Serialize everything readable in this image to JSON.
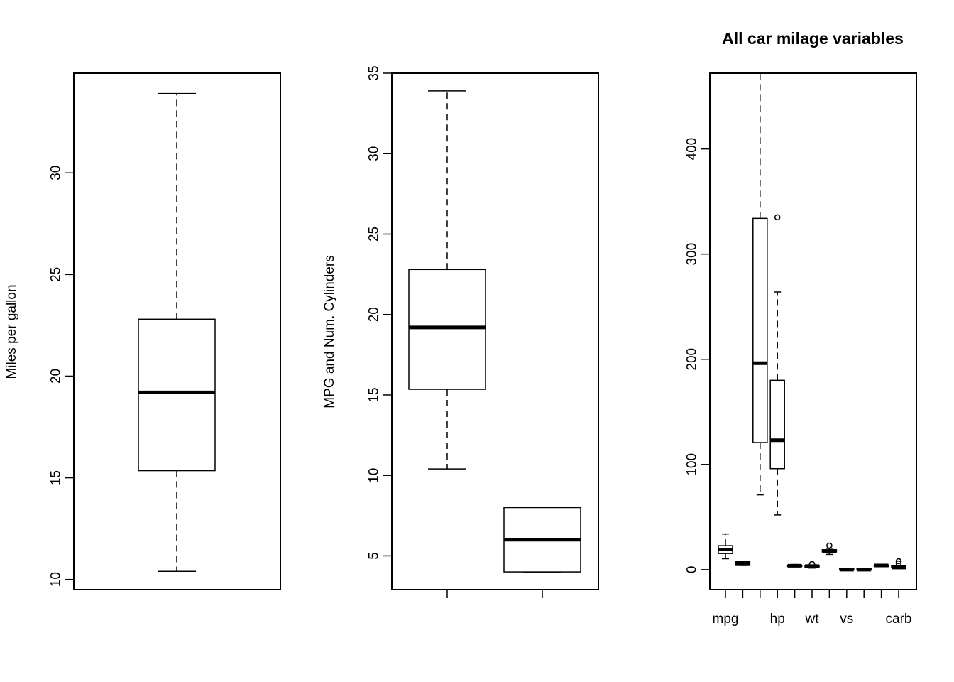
{
  "chart_data": [
    {
      "type": "boxplot",
      "title": "",
      "xlabel": "",
      "ylabel": "Miles per gallon",
      "ylim": [
        9.5,
        34.9
      ],
      "yticks": [
        10,
        15,
        20,
        25,
        30
      ],
      "xtick_labels": [],
      "show_x_axis": false,
      "boxes": [
        {
          "min": 10.4,
          "q1": 15.35,
          "median": 19.2,
          "q3": 22.8,
          "max": 33.9,
          "outliers": []
        }
      ]
    },
    {
      "type": "boxplot",
      "title": "",
      "xlabel": "",
      "ylabel": "MPG and Num. Cylinders",
      "ylim": [
        2.9,
        35.0
      ],
      "yticks": [
        5,
        10,
        15,
        20,
        25,
        30,
        35
      ],
      "xtick_labels": [
        "",
        ""
      ],
      "show_x_axis": true,
      "boxes": [
        {
          "min": 10.4,
          "q1": 15.35,
          "median": 19.2,
          "q3": 22.8,
          "max": 33.9,
          "outliers": []
        },
        {
          "min": 4,
          "q1": 4,
          "median": 6,
          "q3": 8,
          "max": 8,
          "outliers": []
        }
      ]
    },
    {
      "type": "boxplot",
      "title": "All car milage variables",
      "xlabel": "",
      "ylabel": "",
      "ylim": [
        -19,
        472
      ],
      "yticks": [
        0,
        100,
        200,
        300,
        400
      ],
      "xtick_labels": [
        "mpg",
        "",
        "",
        "hp",
        "",
        "wt",
        "",
        "vs",
        "",
        "",
        "carb"
      ],
      "show_x_axis": true,
      "boxes": [
        {
          "min": 10.4,
          "q1": 15.35,
          "median": 19.2,
          "q3": 22.8,
          "max": 33.9,
          "outliers": []
        },
        {
          "min": 4,
          "q1": 4,
          "median": 6,
          "q3": 8,
          "max": 8,
          "outliers": []
        },
        {
          "min": 71.1,
          "q1": 120.8,
          "median": 196.3,
          "q3": 334,
          "max": 472,
          "outliers": []
        },
        {
          "min": 52,
          "q1": 96,
          "median": 123,
          "q3": 180,
          "max": 264,
          "outliers": [
            335
          ]
        },
        {
          "min": 2.76,
          "q1": 3.08,
          "median": 3.7,
          "q3": 3.92,
          "max": 4.93,
          "outliers": []
        },
        {
          "min": 1.51,
          "q1": 2.58,
          "median": 3.33,
          "q3": 3.61,
          "max": 4.07,
          "outliers": [
            5.25,
            5.42,
            5.34
          ]
        },
        {
          "min": 14.5,
          "q1": 16.89,
          "median": 17.71,
          "q3": 18.9,
          "max": 20.22,
          "outliers": [
            22.9
          ]
        },
        {
          "min": 0,
          "q1": 0,
          "median": 0,
          "q3": 1,
          "max": 1,
          "outliers": []
        },
        {
          "min": 0,
          "q1": 0,
          "median": 0,
          "q3": 1,
          "max": 1,
          "outliers": []
        },
        {
          "min": 3,
          "q1": 3,
          "median": 4,
          "q3": 4,
          "max": 5,
          "outliers": []
        },
        {
          "min": 1,
          "q1": 2,
          "median": 2,
          "q3": 4,
          "max": 4,
          "outliers": [
            6,
            8
          ]
        }
      ]
    }
  ]
}
